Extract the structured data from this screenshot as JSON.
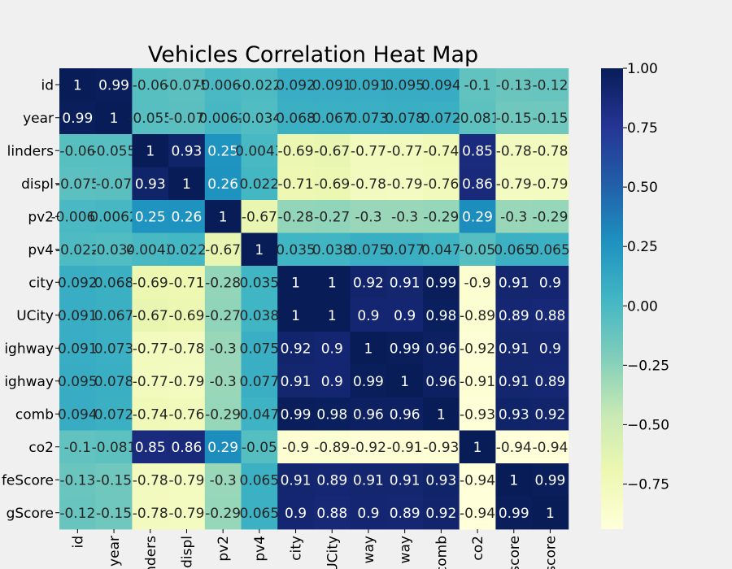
{
  "chart_data": {
    "type": "heatmap",
    "title": "Vehicles Correlation Heat Map",
    "row_labels": [
      "id",
      "year",
      "linders",
      "displ",
      "pv2",
      "pv4",
      "city",
      "UCity",
      "ighway",
      "ighway",
      "comb",
      "co2",
      "feScore",
      "gScore"
    ],
    "col_labels": [
      "id",
      "year",
      "nders",
      "displ",
      "pv2",
      "pv4",
      "city",
      "UCity",
      "way",
      "way",
      "comb",
      "co2",
      "score",
      "score"
    ],
    "value_labels": [
      [
        "1",
        "0.99",
        "-0.06",
        "-0.075",
        "-0.0066",
        "-0.022",
        "0.092",
        "0.091",
        "0.091",
        "0.095",
        "0.094",
        "-0.1",
        "-0.13",
        "-0.12"
      ],
      [
        "0.99",
        "1",
        "-0.055",
        "-0.07",
        "0.0062",
        "-0.034",
        "0.068",
        "0.067",
        "0.073",
        "0.078",
        "0.072",
        "-0.081",
        "-0.15",
        "-0.15"
      ],
      [
        "-0.06",
        "-0.055",
        "1",
        "0.93",
        "0.25",
        "0.0043",
        "-0.69",
        "-0.67",
        "-0.77",
        "-0.77",
        "-0.74",
        "0.85",
        "-0.78",
        "-0.78"
      ],
      [
        "-0.075",
        "-0.07",
        "0.93",
        "1",
        "0.26",
        "0.022",
        "-0.71",
        "-0.69",
        "-0.78",
        "-0.79",
        "-0.76",
        "0.86",
        "-0.79",
        "-0.79"
      ],
      [
        "-0.0066",
        "0.0062",
        "0.25",
        "0.26",
        "1",
        "-0.67",
        "-0.28",
        "-0.27",
        "-0.3",
        "-0.3",
        "-0.29",
        "0.29",
        "-0.3",
        "-0.29"
      ],
      [
        "-0.022",
        "-0.034",
        "0.0043",
        "0.022",
        "-0.67",
        "1",
        "0.035",
        "0.038",
        "0.075",
        "0.077",
        "0.047",
        "-0.05",
        "0.065",
        "0.065"
      ],
      [
        "0.092",
        "0.068",
        "-0.69",
        "-0.71",
        "-0.28",
        "0.035",
        "1",
        "1",
        "0.92",
        "0.91",
        "0.99",
        "-0.9",
        "0.91",
        "0.9"
      ],
      [
        "0.091",
        "0.067",
        "-0.67",
        "-0.69",
        "-0.27",
        "0.038",
        "1",
        "1",
        "0.9",
        "0.9",
        "0.98",
        "-0.89",
        "0.89",
        "0.88"
      ],
      [
        "0.091",
        "0.073",
        "-0.77",
        "-0.78",
        "-0.3",
        "0.075",
        "0.92",
        "0.9",
        "1",
        "0.99",
        "0.96",
        "-0.92",
        "0.91",
        "0.9"
      ],
      [
        "0.095",
        "0.078",
        "-0.77",
        "-0.79",
        "-0.3",
        "0.077",
        "0.91",
        "0.9",
        "0.99",
        "1",
        "0.96",
        "-0.91",
        "0.91",
        "0.89"
      ],
      [
        "0.094",
        "0.072",
        "-0.74",
        "-0.76",
        "-0.29",
        "0.047",
        "0.99",
        "0.98",
        "0.96",
        "0.96",
        "1",
        "-0.93",
        "0.93",
        "0.92"
      ],
      [
        "-0.1",
        "-0.081",
        "0.85",
        "0.86",
        "0.29",
        "-0.05",
        "-0.9",
        "-0.89",
        "-0.92",
        "-0.91",
        "-0.93",
        "1",
        "-0.94",
        "-0.94"
      ],
      [
        "-0.13",
        "-0.15",
        "-0.78",
        "-0.79",
        "-0.3",
        "0.065",
        "0.91",
        "0.89",
        "0.91",
        "0.91",
        "0.93",
        "-0.94",
        "1",
        "0.99"
      ],
      [
        "-0.12",
        "-0.15",
        "-0.78",
        "-0.79",
        "-0.29",
        "0.065",
        "0.9",
        "0.88",
        "0.9",
        "0.89",
        "0.92",
        "-0.94",
        "0.99",
        "1"
      ]
    ],
    "colorbar": {
      "min": -0.94,
      "max": 1.0,
      "ticks": [
        1.0,
        0.75,
        0.5,
        0.25,
        0.0,
        -0.25,
        -0.5,
        -0.75
      ],
      "tick_labels": [
        "1.00",
        "0.75",
        "0.50",
        "0.25",
        "0.00",
        "−0.25",
        "−0.50",
        "−0.75"
      ],
      "colormap": "YlGnBu",
      "colors": [
        "#ffffd9",
        "#edf8b1",
        "#c7e9b4",
        "#7fcdbb",
        "#41b6c4",
        "#1d91c0",
        "#225ea8",
        "#253494",
        "#081d58"
      ]
    }
  }
}
